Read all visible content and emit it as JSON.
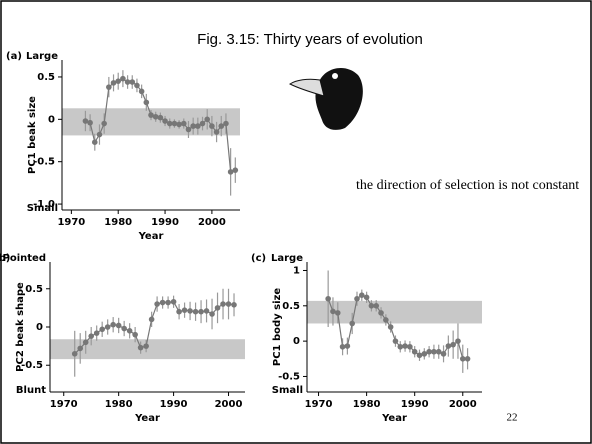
{
  "slide": {
    "title": "Fig. 3.15:  Thirty years of evolution",
    "note": "the direction of selection is not constant",
    "page_number": 22
  },
  "chart_data": [
    {
      "type": "line",
      "panel": "(a)",
      "y_label": "PC1 beak size",
      "x_label": "Year",
      "top_label": "Large",
      "bottom_label": "Small",
      "x": [
        1973,
        1974,
        1975,
        1976,
        1977,
        1978,
        1979,
        1980,
        1981,
        1982,
        1983,
        1984,
        1985,
        1986,
        1987,
        1988,
        1989,
        1990,
        1991,
        1992,
        1993,
        1994,
        1995,
        1996,
        1997,
        1998,
        1999,
        2000,
        2001,
        2002,
        2003,
        2004,
        2005
      ],
      "values": [
        -0.02,
        -0.04,
        -0.27,
        -0.18,
        -0.05,
        0.38,
        0.43,
        0.45,
        0.48,
        0.44,
        0.44,
        0.4,
        0.33,
        0.2,
        0.05,
        0.03,
        0.02,
        -0.02,
        -0.05,
        -0.05,
        -0.06,
        -0.05,
        -0.12,
        -0.08,
        -0.08,
        -0.05,
        0.0,
        -0.08,
        -0.15,
        -0.08,
        -0.05,
        -0.62,
        -0.6
      ],
      "errors": [
        0.12,
        0.1,
        0.1,
        0.12,
        0.12,
        0.12,
        0.1,
        0.1,
        0.1,
        0.08,
        0.08,
        0.08,
        0.08,
        0.1,
        0.06,
        0.06,
        0.06,
        0.06,
        0.06,
        0.05,
        0.05,
        0.06,
        0.1,
        0.1,
        0.1,
        0.08,
        0.12,
        0.12,
        0.12,
        0.12,
        0.12,
        0.28,
        0.15
      ],
      "band": [
        -0.19,
        0.13
      ],
      "color": "#777777",
      "xlim": [
        1968,
        2006
      ],
      "xticks": [
        1970,
        1980,
        1990,
        2000
      ],
      "ylim": [
        -1.07,
        0.7
      ],
      "yticks": [
        0.5,
        0,
        -0.5,
        {
          "value": -1,
          "label": "-1.0"
        }
      ]
    },
    {
      "type": "line",
      "panel": "(b)",
      "y_label": "PC2 beak shape",
      "x_label": "Year",
      "top_label": "Pointed",
      "bottom_label": "Blunt",
      "x": [
        1972,
        1973,
        1974,
        1975,
        1976,
        1977,
        1978,
        1979,
        1980,
        1981,
        1982,
        1983,
        1984,
        1985,
        1986,
        1987,
        1988,
        1989,
        1990,
        1991,
        1992,
        1993,
        1994,
        1995,
        1996,
        1997,
        1998,
        1999,
        2000,
        2001
      ],
      "values": [
        -0.35,
        -0.28,
        -0.2,
        -0.12,
        -0.08,
        -0.03,
        0.0,
        0.03,
        0.02,
        -0.02,
        -0.05,
        -0.1,
        -0.27,
        -0.25,
        0.1,
        0.3,
        0.32,
        0.32,
        0.33,
        0.2,
        0.22,
        0.21,
        0.2,
        0.2,
        0.21,
        0.17,
        0.25,
        0.3,
        0.3,
        0.29
      ],
      "errors": [
        0.3,
        0.2,
        0.15,
        0.12,
        0.1,
        0.1,
        0.1,
        0.1,
        0.1,
        0.1,
        0.1,
        0.1,
        0.08,
        0.08,
        0.1,
        0.1,
        0.08,
        0.08,
        0.08,
        0.1,
        0.1,
        0.12,
        0.12,
        0.15,
        0.15,
        0.2,
        0.2,
        0.2,
        0.2,
        0.15
      ],
      "band": [
        -0.42,
        -0.16
      ],
      "color": "#777777",
      "xlim": [
        1967.5,
        2003
      ],
      "xticks": [
        1970,
        1980,
        1990,
        2000
      ],
      "ylim": [
        -0.85,
        0.85
      ],
      "yticks": [
        0.5,
        0,
        -0.5
      ]
    },
    {
      "type": "line",
      "panel": "(c)",
      "y_label": "PC1 body size",
      "x_label": "Year",
      "top_label": "Large",
      "bottom_label": "Small",
      "x": [
        1972,
        1973,
        1974,
        1975,
        1976,
        1977,
        1978,
        1979,
        1980,
        1981,
        1982,
        1983,
        1984,
        1985,
        1986,
        1987,
        1988,
        1989,
        1990,
        1991,
        1992,
        1993,
        1994,
        1995,
        1996,
        1997,
        1998,
        1999,
        2000,
        2001
      ],
      "values": [
        0.6,
        0.42,
        0.4,
        -0.08,
        -0.07,
        0.25,
        0.6,
        0.65,
        0.62,
        0.5,
        0.5,
        0.4,
        0.3,
        0.2,
        0.0,
        -0.08,
        -0.07,
        -0.08,
        -0.15,
        -0.2,
        -0.18,
        -0.15,
        -0.15,
        -0.15,
        -0.18,
        -0.07,
        -0.05,
        0.0,
        -0.25,
        -0.25
      ],
      "errors": [
        0.4,
        0.2,
        0.15,
        0.12,
        0.12,
        0.15,
        0.1,
        0.08,
        0.08,
        0.08,
        0.08,
        0.08,
        0.08,
        0.08,
        0.08,
        0.08,
        0.08,
        0.08,
        0.08,
        0.08,
        0.08,
        0.08,
        0.1,
        0.1,
        0.12,
        0.15,
        0.2,
        0.25,
        0.2,
        0.15
      ],
      "band": [
        0.25,
        0.57
      ],
      "color": "#777777",
      "xlim": [
        1967.6,
        2004
      ],
      "xticks": [
        1970,
        1980,
        1990,
        2000
      ],
      "ylim": [
        -0.72,
        1.12
      ],
      "yticks": [
        1,
        0.5,
        0,
        -0.5
      ]
    }
  ]
}
